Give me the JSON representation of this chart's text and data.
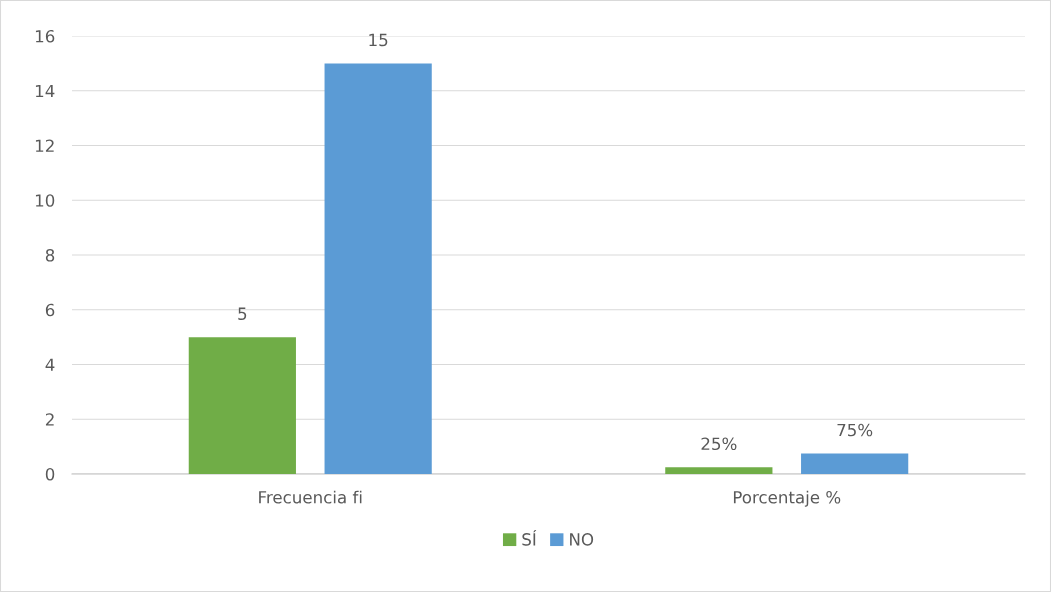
{
  "chart_data": {
    "type": "bar",
    "categories": [
      "Frecuencia fi",
      "Porcentaje %"
    ],
    "series": [
      {
        "name": "SÍ",
        "color": "#70ad47",
        "values": [
          5,
          0.25
        ],
        "value_labels": [
          "5",
          "25%"
        ]
      },
      {
        "name": "NO",
        "color": "#5b9bd5",
        "values": [
          15,
          0.75
        ],
        "value_labels": [
          "15",
          "75%"
        ]
      }
    ],
    "ylim": [
      0,
      16
    ],
    "yticks": [
      0,
      2,
      4,
      6,
      8,
      10,
      12,
      14,
      16
    ],
    "grid": "y",
    "legend": "bottom"
  }
}
